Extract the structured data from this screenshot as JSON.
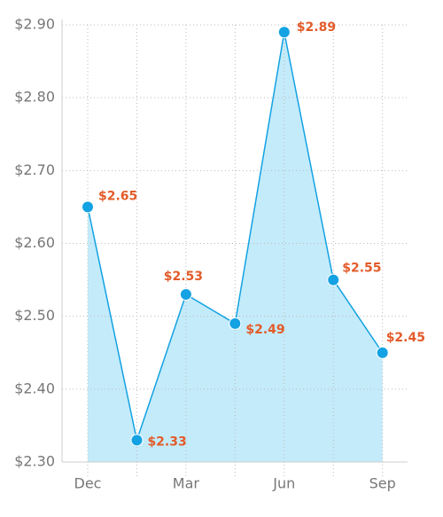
{
  "chart_data": {
    "type": "line",
    "categories": [
      "Dec",
      null,
      "Mar",
      null,
      "Jun",
      null,
      "Sep"
    ],
    "values": [
      2.65,
      2.33,
      2.53,
      2.49,
      2.89,
      2.55,
      2.45
    ],
    "value_labels": [
      "$2.65",
      "$2.33",
      "$2.53",
      "$2.49",
      "$2.89",
      "$2.55",
      "$2.45"
    ],
    "color": "#13a2e3",
    "fill_color": "#c4ebfa",
    "label_color": "#e35b2a",
    "ylim": [
      2.3,
      2.9
    ],
    "yticks": [
      {
        "value": 2.3,
        "label": "$2.30"
      },
      {
        "value": 2.4,
        "label": "$2.40"
      },
      {
        "value": 2.5,
        "label": "$2.50"
      },
      {
        "value": 2.6,
        "label": "$2.60"
      },
      {
        "value": 2.7,
        "label": "$2.70"
      },
      {
        "value": 2.8,
        "label": "$2.80"
      },
      {
        "value": 2.9,
        "label": "$2.90"
      }
    ],
    "grid": true
  }
}
